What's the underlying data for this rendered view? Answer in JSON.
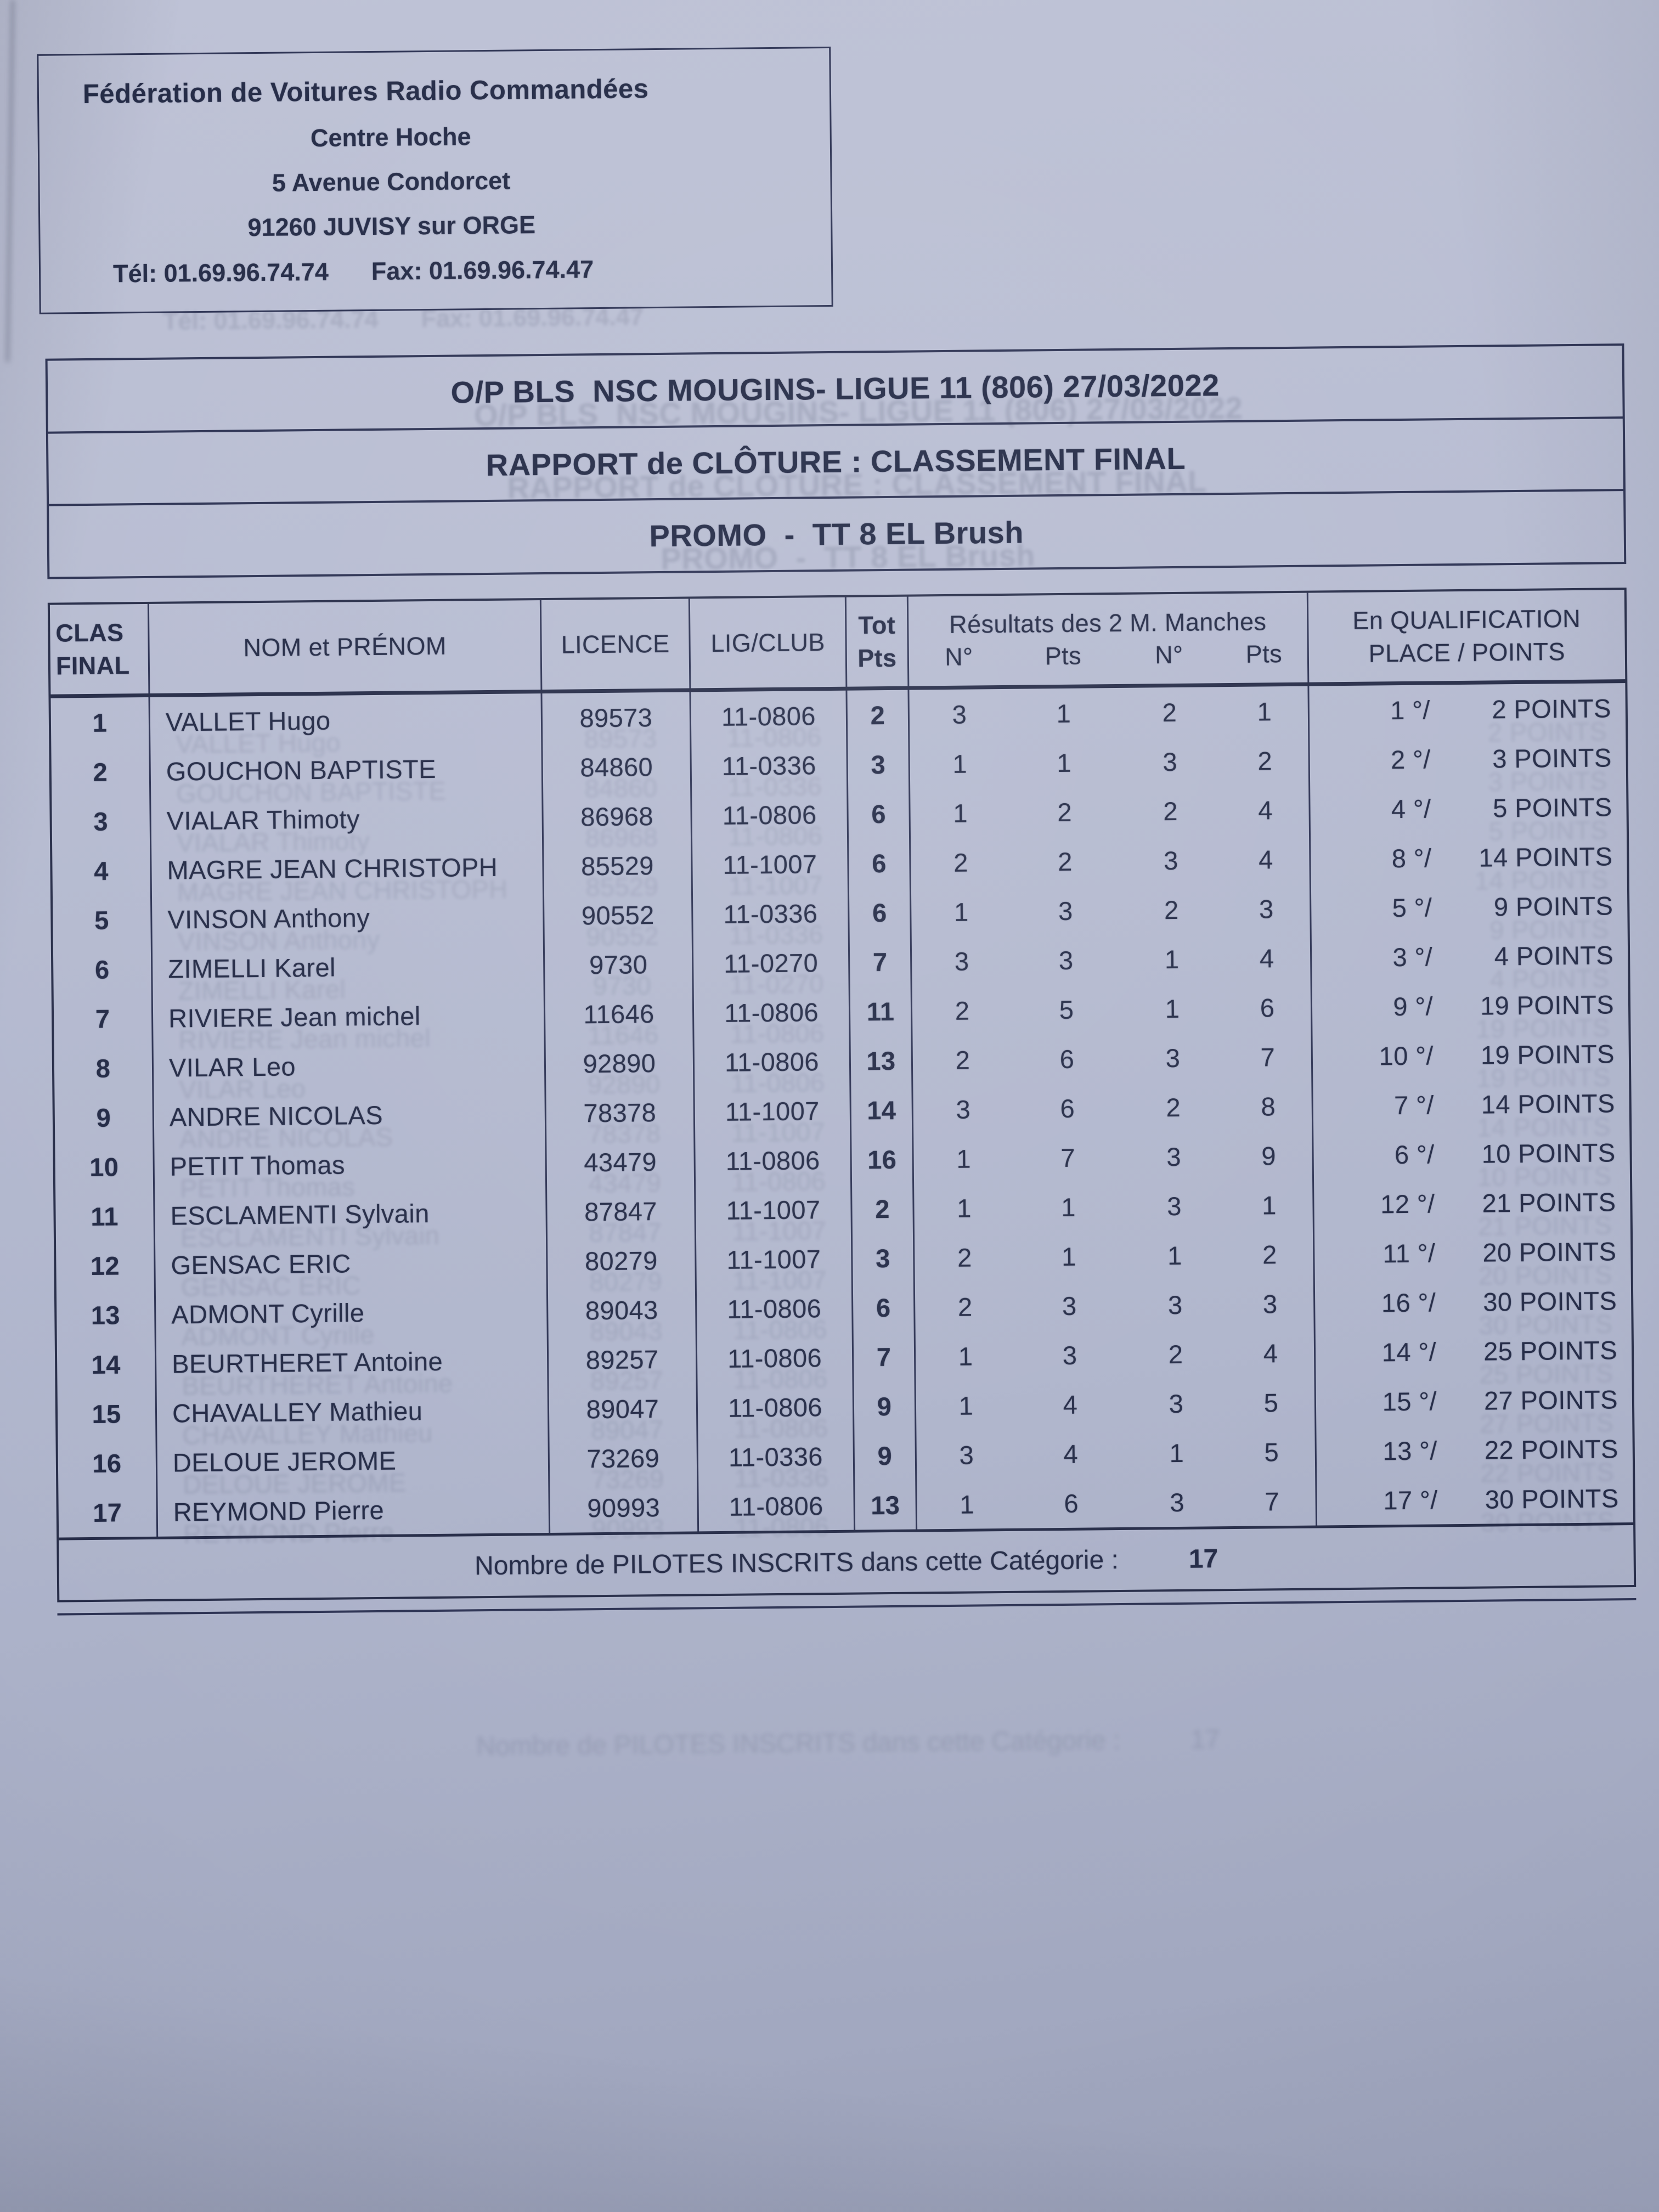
{
  "letterhead": {
    "org": "Fédération de Voitures Radio Commandées",
    "line2": "Centre Hoche",
    "line3": "5 Avenue Condorcet",
    "line4": "91260 JUVISY sur ORGE",
    "phone_label": "Tél: 01.69.96.74.74",
    "fax_label": "Fax: 01.69.96.74.47"
  },
  "title_block": {
    "event": "O/P BLS  NSC MOUGINS- LIGUE 11 (806) 27/03/2022",
    "report": "RAPPORT de CLÔTURE : CLASSEMENT FINAL",
    "category": "PROMO  -  TT 8 EL Brush"
  },
  "table": {
    "headers": {
      "clas_line1": "CLAS",
      "clas_line2": "FINAL",
      "nom": "NOM et PRÉNOM",
      "licence": "LICENCE",
      "club": "LIG/CLUB",
      "tot_line1": "Tot",
      "tot_line2": "Pts",
      "manches_group": "Résultats des 2 M. Manches",
      "n1": "N°",
      "pts1": "Pts",
      "n2": "N°",
      "pts2": "Pts",
      "qual_line1": "En QUALIFICATION",
      "qual_line2": "PLACE  /  POINTS"
    },
    "rows": [
      {
        "clas": "1",
        "nom": "VALLET Hugo",
        "licence": "89573",
        "club": "11-0806",
        "tot": "2",
        "n1": "3",
        "pts1": "1",
        "n2": "2",
        "pts2": "1",
        "qual_place": "1 °/",
        "qual_points": "2 POINTS"
      },
      {
        "clas": "2",
        "nom": "GOUCHON BAPTISTE",
        "licence": "84860",
        "club": "11-0336",
        "tot": "3",
        "n1": "1",
        "pts1": "1",
        "n2": "3",
        "pts2": "2",
        "qual_place": "2 °/",
        "qual_points": "3 POINTS"
      },
      {
        "clas": "3",
        "nom": "VIALAR Thimoty",
        "licence": "86968",
        "club": "11-0806",
        "tot": "6",
        "n1": "1",
        "pts1": "2",
        "n2": "2",
        "pts2": "4",
        "qual_place": "4 °/",
        "qual_points": "5 POINTS"
      },
      {
        "clas": "4",
        "nom": "MAGRE JEAN CHRISTOPH",
        "licence": "85529",
        "club": "11-1007",
        "tot": "6",
        "n1": "2",
        "pts1": "2",
        "n2": "3",
        "pts2": "4",
        "qual_place": "8 °/",
        "qual_points": "14 POINTS"
      },
      {
        "clas": "5",
        "nom": "VINSON Anthony",
        "licence": "90552",
        "club": "11-0336",
        "tot": "6",
        "n1": "1",
        "pts1": "3",
        "n2": "2",
        "pts2": "3",
        "qual_place": "5 °/",
        "qual_points": "9 POINTS"
      },
      {
        "clas": "6",
        "nom": "ZIMELLI Karel",
        "licence": "9730",
        "club": "11-0270",
        "tot": "7",
        "n1": "3",
        "pts1": "3",
        "n2": "1",
        "pts2": "4",
        "qual_place": "3 °/",
        "qual_points": "4 POINTS"
      },
      {
        "clas": "7",
        "nom": "RIVIERE Jean michel",
        "licence": "11646",
        "club": "11-0806",
        "tot": "11",
        "n1": "2",
        "pts1": "5",
        "n2": "1",
        "pts2": "6",
        "qual_place": "9 °/",
        "qual_points": "19 POINTS"
      },
      {
        "clas": "8",
        "nom": "VILAR Leo",
        "licence": "92890",
        "club": "11-0806",
        "tot": "13",
        "n1": "2",
        "pts1": "6",
        "n2": "3",
        "pts2": "7",
        "qual_place": "10 °/",
        "qual_points": "19 POINTS"
      },
      {
        "clas": "9",
        "nom": "ANDRE NICOLAS",
        "licence": "78378",
        "club": "11-1007",
        "tot": "14",
        "n1": "3",
        "pts1": "6",
        "n2": "2",
        "pts2": "8",
        "qual_place": "7 °/",
        "qual_points": "14 POINTS"
      },
      {
        "clas": "10",
        "nom": "PETIT Thomas",
        "licence": "43479",
        "club": "11-0806",
        "tot": "16",
        "n1": "1",
        "pts1": "7",
        "n2": "3",
        "pts2": "9",
        "qual_place": "6 °/",
        "qual_points": "10 POINTS"
      },
      {
        "clas": "11",
        "nom": "ESCLAMENTI Sylvain",
        "licence": "87847",
        "club": "11-1007",
        "tot": "2",
        "n1": "1",
        "pts1": "1",
        "n2": "3",
        "pts2": "1",
        "qual_place": "12 °/",
        "qual_points": "21 POINTS"
      },
      {
        "clas": "12",
        "nom": "GENSAC ERIC",
        "licence": "80279",
        "club": "11-1007",
        "tot": "3",
        "n1": "2",
        "pts1": "1",
        "n2": "1",
        "pts2": "2",
        "qual_place": "11 °/",
        "qual_points": "20 POINTS"
      },
      {
        "clas": "13",
        "nom": "ADMONT Cyrille",
        "licence": "89043",
        "club": "11-0806",
        "tot": "6",
        "n1": "2",
        "pts1": "3",
        "n2": "3",
        "pts2": "3",
        "qual_place": "16 °/",
        "qual_points": "30 POINTS"
      },
      {
        "clas": "14",
        "nom": "BEURTHERET Antoine",
        "licence": "89257",
        "club": "11-0806",
        "tot": "7",
        "n1": "1",
        "pts1": "3",
        "n2": "2",
        "pts2": "4",
        "qual_place": "14 °/",
        "qual_points": "25 POINTS"
      },
      {
        "clas": "15",
        "nom": "CHAVALLEY Mathieu",
        "licence": "89047",
        "club": "11-0806",
        "tot": "9",
        "n1": "1",
        "pts1": "4",
        "n2": "3",
        "pts2": "5",
        "qual_place": "15 °/",
        "qual_points": "27 POINTS"
      },
      {
        "clas": "16",
        "nom": "DELOUE JEROME",
        "licence": "73269",
        "club": "11-0336",
        "tot": "9",
        "n1": "3",
        "pts1": "4",
        "n2": "1",
        "pts2": "5",
        "qual_place": "13 °/",
        "qual_points": "22 POINTS"
      },
      {
        "clas": "17",
        "nom": "REYMOND Pierre",
        "licence": "90993",
        "club": "11-0806",
        "tot": "13",
        "n1": "1",
        "pts1": "6",
        "n2": "3",
        "pts2": "7",
        "qual_place": "17 °/",
        "qual_points": "30 POINTS"
      }
    ],
    "footer": {
      "label": "Nombre de PILOTES INSCRITS dans cette Catégorie :",
      "value": "17"
    }
  }
}
